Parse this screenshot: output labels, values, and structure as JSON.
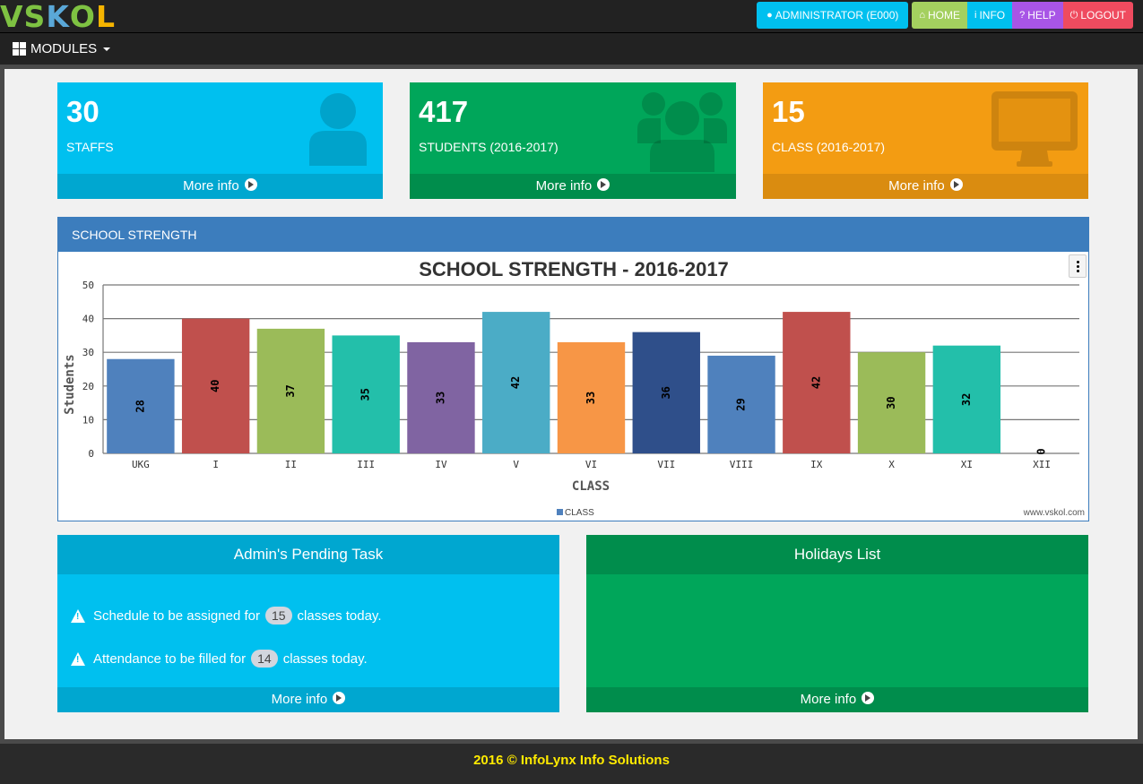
{
  "app": {
    "logo_text": "VSKOL"
  },
  "topnav": {
    "admin_label": "ADMINISTRATOR (E000)",
    "home_label": "HOME",
    "info_label": "INFO",
    "help_label": "HELP",
    "logout_label": "LOGOUT"
  },
  "modules_label": "MODULES",
  "infoboxes": [
    {
      "value": "30",
      "label": "STAFFS",
      "link": "More info",
      "color": "#00c0ef",
      "foot_color": "#00a7d0",
      "icon": "user-icon"
    },
    {
      "value": "417",
      "label": "STUDENTS (2016-2017)",
      "link": "More info",
      "color": "#00a65a",
      "foot_color": "#008d4c",
      "icon": "users-icon"
    },
    {
      "value": "15",
      "label": "CLASS (2016-2017)",
      "link": "More info",
      "color": "#f39c12",
      "foot_color": "#da8c10",
      "icon": "desktop-icon"
    }
  ],
  "chart_panel": {
    "title": "SCHOOL STRENGTH",
    "credit": "www.vskol.com"
  },
  "chart_data": {
    "type": "bar",
    "title": "SCHOOL STRENGTH - 2016-2017",
    "xlabel": "CLASS",
    "ylabel": "Students",
    "ylim": [
      0,
      50
    ],
    "yticks": [
      0,
      10,
      20,
      30,
      40,
      50
    ],
    "grid": true,
    "legend": "bottom-center",
    "categories": [
      "UKG",
      "I",
      "II",
      "III",
      "IV",
      "V",
      "VI",
      "VII",
      "VIII",
      "IX",
      "X",
      "XI",
      "XII"
    ],
    "series": [
      {
        "name": "CLASS",
        "values": [
          28,
          40,
          37,
          35,
          33,
          42,
          33,
          36,
          29,
          42,
          30,
          32,
          0
        ]
      }
    ],
    "colors": [
      "#4f81bd",
      "#c0504d",
      "#9bbb59",
      "#23bfaa",
      "#8064a2",
      "#4bacc6",
      "#f79646",
      "#2f4f8a",
      "#4f81bd",
      "#c0504d",
      "#9bbb59",
      "#23bfaa",
      "#4f81bd"
    ]
  },
  "pending": {
    "title": "Admin's Pending Task",
    "task1_pre": "Schedule to be assigned for",
    "task1_count": "15",
    "task1_post": "classes today.",
    "task2_pre": "Attendance to be filled for",
    "task2_count": "14",
    "task2_post": "classes today.",
    "link": "More info",
    "color": "#00c0ef",
    "head_color": "#00a7d0"
  },
  "holidays": {
    "title": "Holidays List",
    "link": "More info",
    "color": "#00a65a",
    "head_color": "#008d4c"
  },
  "footer": {
    "text": "2016 © InfoLynx Info Solutions"
  }
}
